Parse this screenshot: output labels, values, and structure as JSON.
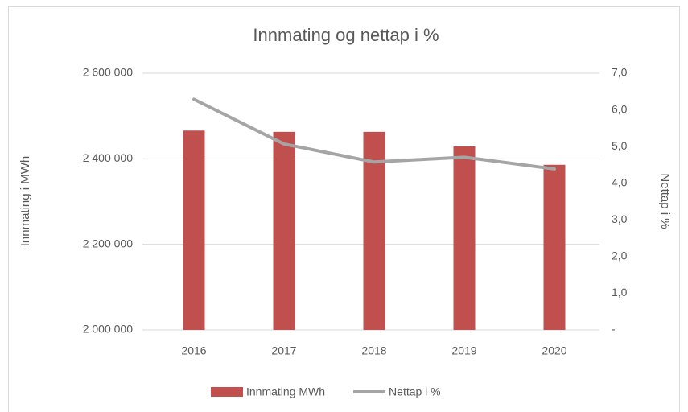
{
  "chart_data": {
    "type": "bar-line",
    "title": "Innmating og nettap i %",
    "categories": [
      "2016",
      "2017",
      "2018",
      "2019",
      "2020"
    ],
    "series": [
      {
        "name": "Innmating MWh",
        "type": "bar",
        "color": "#c0504d",
        "values": [
          2466000,
          2463000,
          2463000,
          2429000,
          2386000
        ]
      },
      {
        "name": "Nettap i %",
        "type": "line",
        "axis": "y2",
        "color": "#a5a5a5",
        "values": [
          6.29,
          5.07,
          4.58,
          4.71,
          4.39
        ]
      }
    ],
    "ylabel": "Innmating i MWh",
    "y2label": "Nettap i %",
    "ylim": [
      2000000,
      2600000
    ],
    "yticks": [
      {
        "value": 2000000,
        "label": "2 000 000"
      },
      {
        "value": 2200000,
        "label": "2 200 000"
      },
      {
        "value": 2400000,
        "label": "2 400 000"
      },
      {
        "value": 2600000,
        "label": "2 600 000"
      }
    ],
    "y2lim": [
      0,
      7
    ],
    "y2ticks": [
      {
        "value": 0,
        "label": "-"
      },
      {
        "value": 1,
        "label": "1,0"
      },
      {
        "value": 2,
        "label": "2,0"
      },
      {
        "value": 3,
        "label": "3,0"
      },
      {
        "value": 4,
        "label": "4,0"
      },
      {
        "value": 5,
        "label": "5,0"
      },
      {
        "value": 6,
        "label": "6,0"
      },
      {
        "value": 7,
        "label": "7,0"
      }
    ],
    "grid": true,
    "legend": "bottom"
  }
}
